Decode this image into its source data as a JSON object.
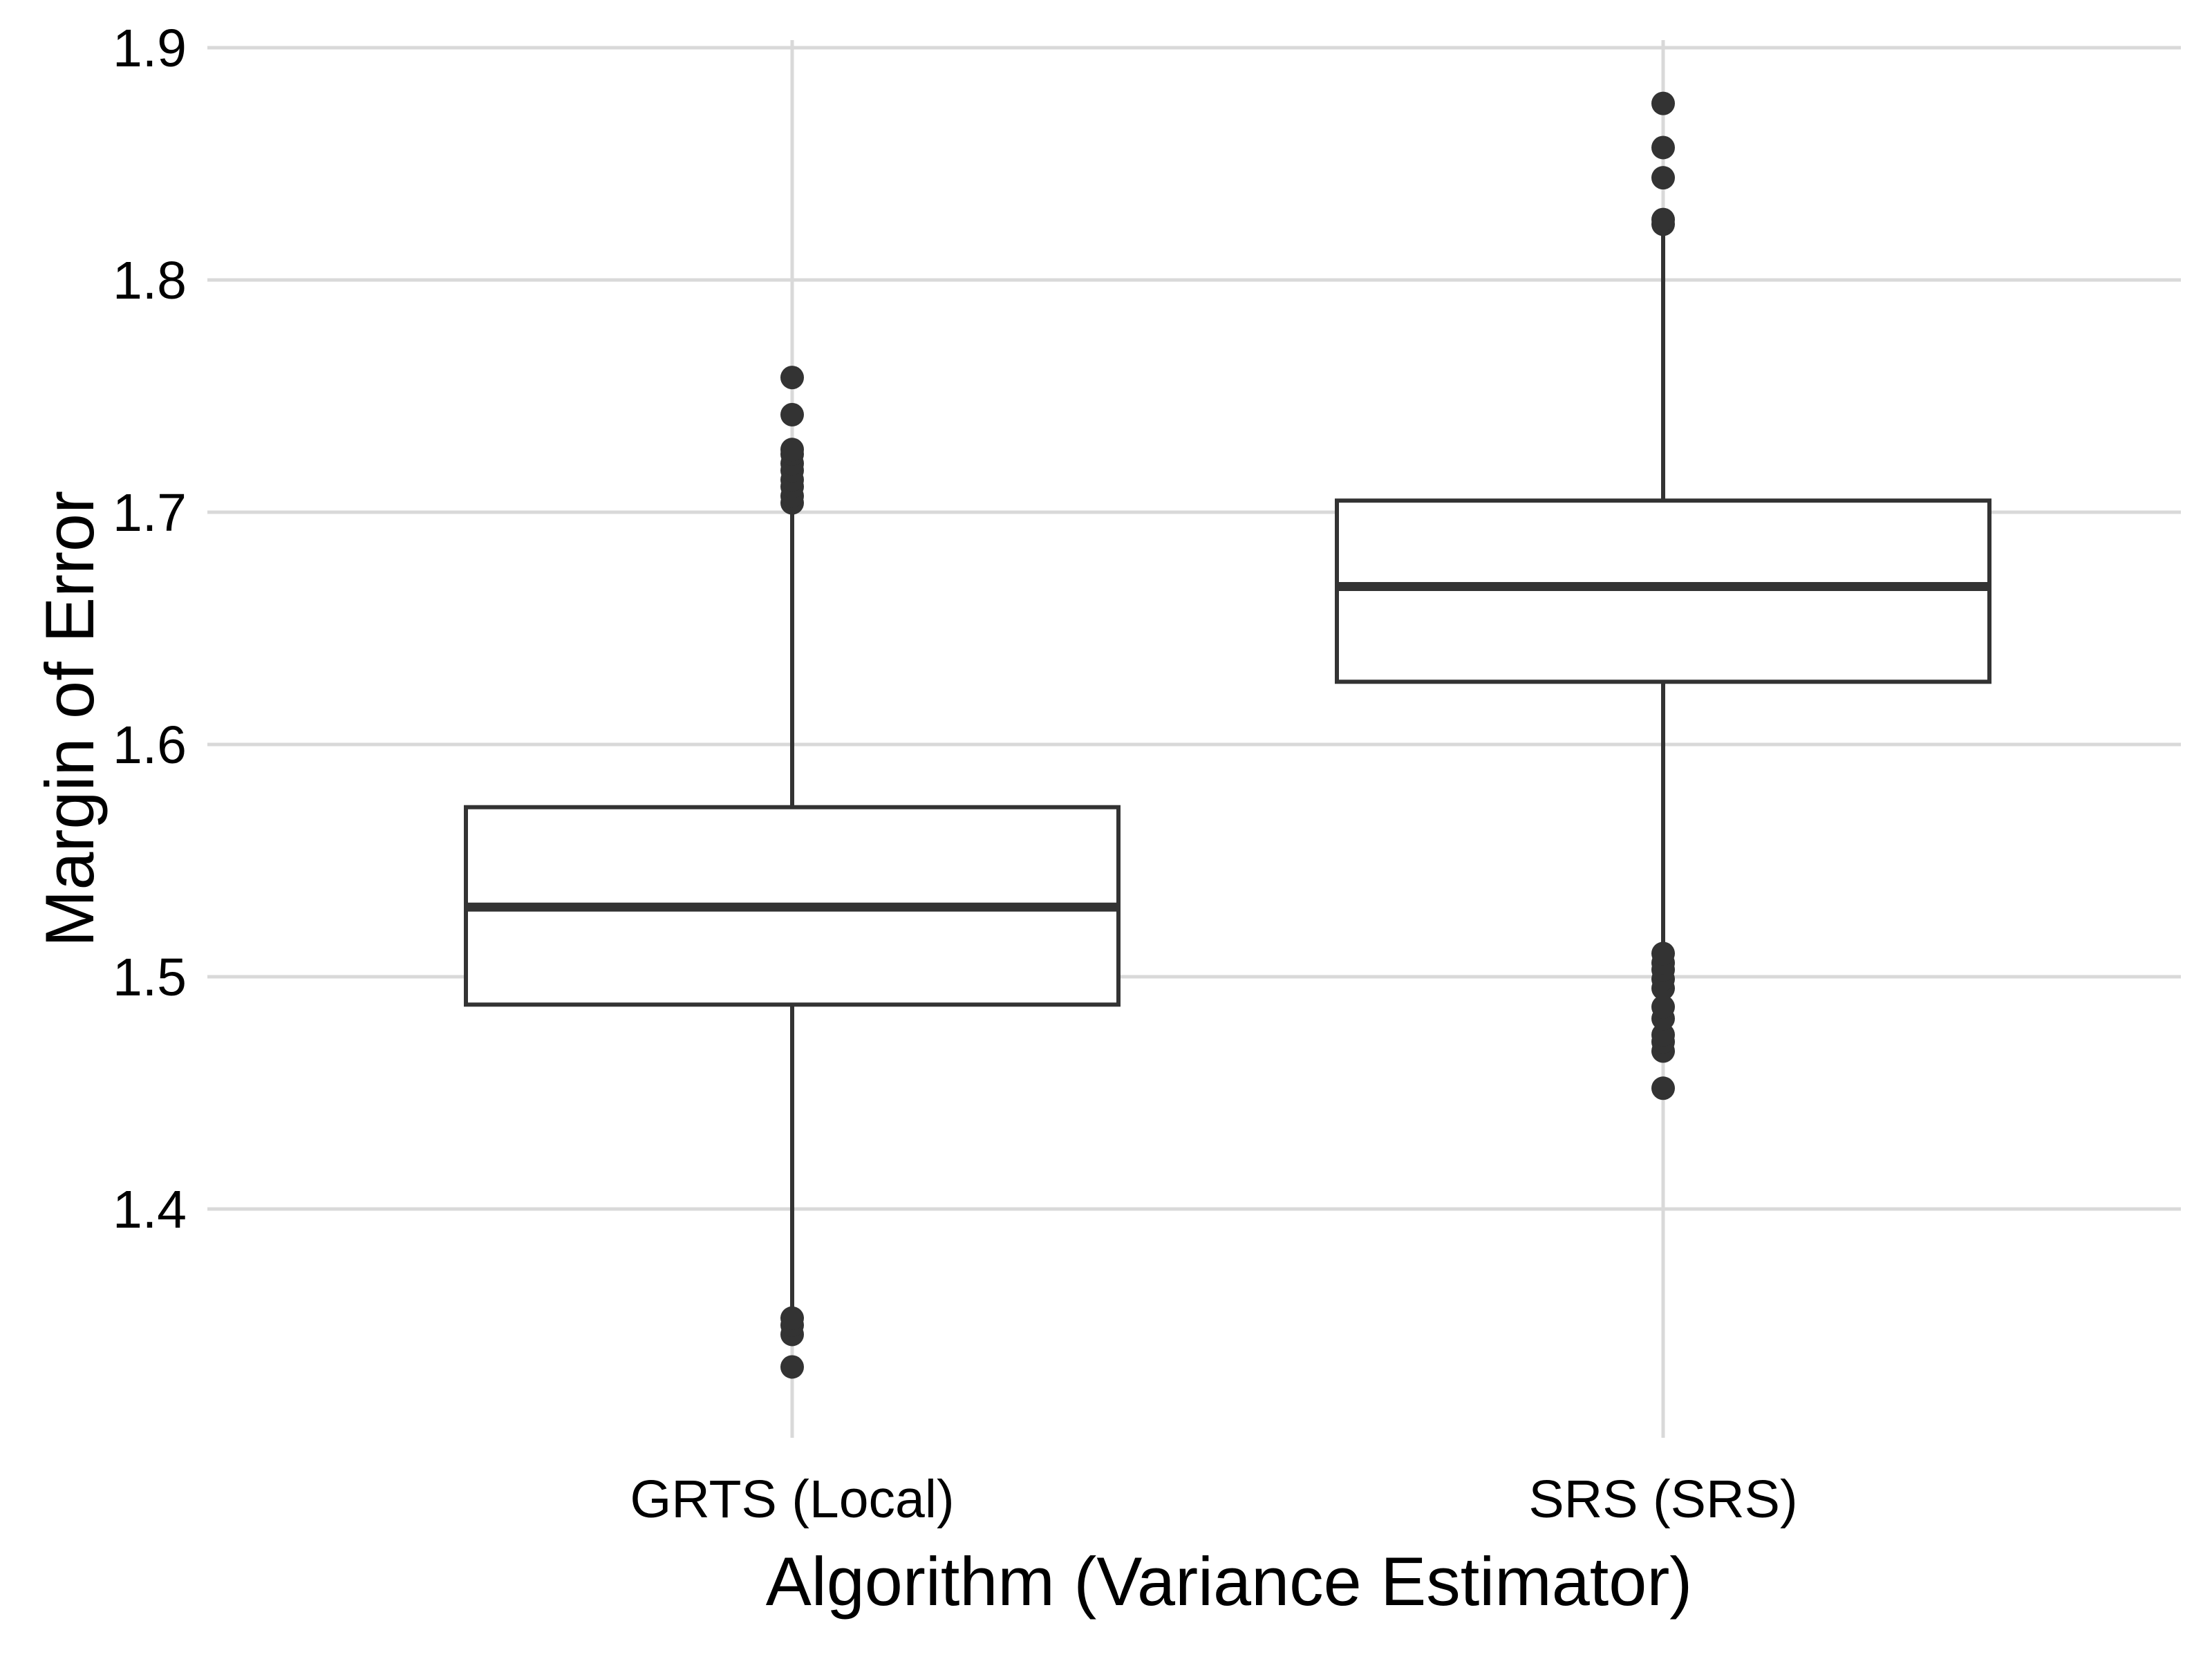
{
  "chart_data": {
    "type": "boxplot",
    "xlabel": "Algorithm (Variance Estimator)",
    "ylabel": "Margin of Error",
    "ylim": [
      1.3,
      1.9
    ],
    "yticks": [
      "1.4",
      "1.5",
      "1.6",
      "1.7",
      "1.8",
      "1.9"
    ],
    "grid": true,
    "legend": "none",
    "colors": {
      "box_stroke": "#333333",
      "box_fill": "#ffffff",
      "grid": "#d9d9d9",
      "outlier": "#333333"
    },
    "categories": [
      "GRTS (Local)",
      "SRS (SRS)"
    ],
    "boxes": [
      {
        "category": "GRTS (Local)",
        "whisker_low": 1.357,
        "q1": 1.488,
        "median": 1.53,
        "q3": 1.573,
        "whisker_high": 1.702,
        "outliers": [
          1.332,
          1.346,
          1.35,
          1.353,
          1.704,
          1.707,
          1.711,
          1.714,
          1.718,
          1.721,
          1.725,
          1.727,
          1.742,
          1.758
        ]
      },
      {
        "category": "SRS (SRS)",
        "whisker_low": 1.514,
        "q1": 1.627,
        "median": 1.668,
        "q3": 1.705,
        "whisker_high": 1.82,
        "outliers": [
          1.452,
          1.468,
          1.472,
          1.475,
          1.482,
          1.487,
          1.495,
          1.499,
          1.503,
          1.506,
          1.51,
          1.824,
          1.826,
          1.844,
          1.857,
          1.876
        ]
      }
    ]
  }
}
